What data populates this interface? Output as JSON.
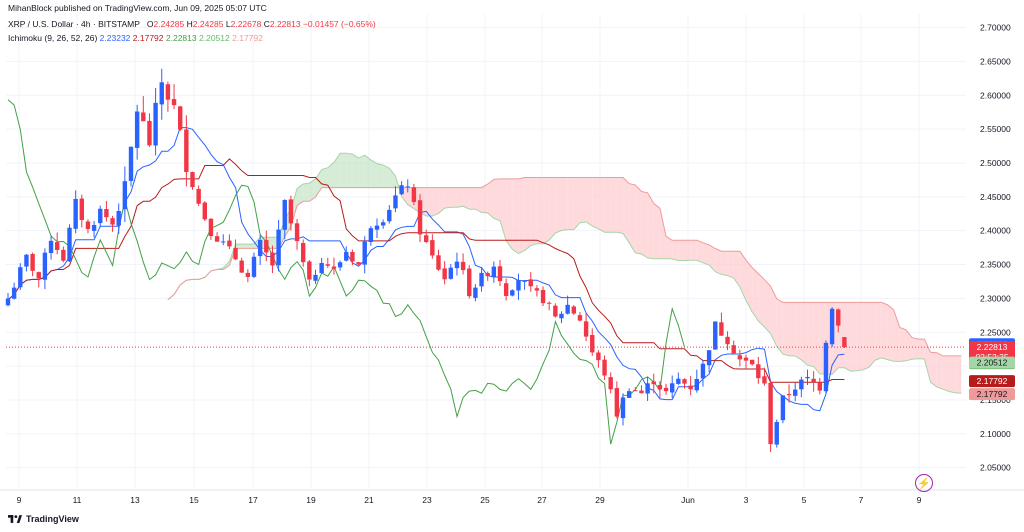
{
  "header": {
    "published": "MihanBlock published on TradingView.com, Jun 09, 2025 05:07 UTC",
    "symbol": "XRP / U.S. Dollar · 4h · BITSTAMP",
    "o_label": "O",
    "o_value": "2.24285",
    "h_label": "H",
    "h_value": "2.24285",
    "l_label": "L",
    "l_value": "2.22678",
    "c_label": "C",
    "c_value": "2.22813",
    "change": "−0.01457 (−0.65%)",
    "indicator": "Ichimoku (9, 26, 52, 26)",
    "ind_values": [
      "2.23232",
      "2.17792",
      "2.22813",
      "2.20512",
      "2.17792"
    ]
  },
  "footer": {
    "brand": "TradingView"
  },
  "icons": {
    "logo": "tradingview-logo-icon",
    "replay": "lightning-icon"
  },
  "colors": {
    "up": "#2962ff",
    "down": "#f23645",
    "tenkan": "#2962ff",
    "kijun": "#b71c1c",
    "chikou": "#43a047",
    "span_a": "#a5d6a7",
    "span_b": "#ef9a9a",
    "cloud_bull": "#c8e6c9",
    "cloud_bear": "#ffcdd2"
  },
  "chart_data": {
    "type": "candlestick",
    "interval": "4h",
    "ylim": [
      2.02,
      2.72
    ],
    "y_ticks": [
      "2.70000",
      "2.65000",
      "2.60000",
      "2.55000",
      "2.50000",
      "2.45000",
      "2.40000",
      "2.35000",
      "2.30000",
      "2.25000",
      "2.20000",
      "2.15000",
      "2.10000",
      "2.05000"
    ],
    "x_ticks": [
      "9",
      "11",
      "13",
      "15",
      "17",
      "19",
      "21",
      "23",
      "25",
      "27",
      "29",
      "Jun",
      "3",
      "5",
      "7",
      "9"
    ],
    "price_labels": [
      {
        "text": "2.23232",
        "value": 2.23232,
        "color": "#2962ff"
      },
      {
        "text": "2.22813",
        "sub": "02:52:35",
        "value": 2.22813,
        "color": "#f23645"
      },
      {
        "text": "2.22813",
        "value": 2.22813,
        "color": "#43a047",
        "shift": 1
      },
      {
        "text": "2.20512",
        "value": 2.20512,
        "color": "#a5d6a7",
        "dark_text": true
      },
      {
        "text": "2.17792",
        "value": 2.17792,
        "color": "#b71c1c"
      },
      {
        "text": "2.17792",
        "value": 2.17792,
        "color": "#ef9a9a",
        "dark_text": true,
        "shift": 1
      }
    ],
    "close_path": [
      [
        0,
        2.3
      ],
      [
        3,
        2.36
      ],
      [
        5,
        2.33
      ],
      [
        7,
        2.39
      ],
      [
        9,
        2.36
      ],
      [
        11,
        2.44
      ],
      [
        13,
        2.4
      ],
      [
        15,
        2.43
      ],
      [
        17,
        2.41
      ],
      [
        19,
        2.46
      ],
      [
        21,
        2.58
      ],
      [
        23,
        2.53
      ],
      [
        25,
        2.62
      ],
      [
        27,
        2.58
      ],
      [
        29,
        2.5
      ],
      [
        31,
        2.44
      ],
      [
        33,
        2.4
      ],
      [
        35,
        2.38
      ],
      [
        37,
        2.36
      ],
      [
        39,
        2.33
      ],
      [
        41,
        2.38
      ],
      [
        43,
        2.35
      ],
      [
        45,
        2.44
      ],
      [
        47,
        2.38
      ],
      [
        49,
        2.32
      ],
      [
        51,
        2.36
      ],
      [
        53,
        2.34
      ],
      [
        55,
        2.37
      ],
      [
        57,
        2.35
      ],
      [
        59,
        2.41
      ],
      [
        61,
        2.42
      ],
      [
        63,
        2.45
      ],
      [
        65,
        2.47
      ],
      [
        67,
        2.4
      ],
      [
        69,
        2.36
      ],
      [
        71,
        2.33
      ],
      [
        73,
        2.36
      ],
      [
        75,
        2.31
      ],
      [
        77,
        2.33
      ],
      [
        79,
        2.35
      ],
      [
        81,
        2.31
      ],
      [
        83,
        2.33
      ],
      [
        85,
        2.31
      ],
      [
        87,
        2.3
      ],
      [
        89,
        2.27
      ],
      [
        91,
        2.29
      ],
      [
        93,
        2.27
      ],
      [
        95,
        2.22
      ],
      [
        97,
        2.19
      ],
      [
        99,
        2.13
      ],
      [
        101,
        2.17
      ],
      [
        103,
        2.16
      ],
      [
        105,
        2.18
      ],
      [
        107,
        2.16
      ],
      [
        109,
        2.18
      ],
      [
        111,
        2.17
      ],
      [
        113,
        2.2
      ],
      [
        115,
        2.26
      ],
      [
        117,
        2.24
      ],
      [
        119,
        2.21
      ],
      [
        121,
        2.2
      ],
      [
        123,
        2.17
      ],
      [
        124,
        2.09
      ],
      [
        126,
        2.15
      ],
      [
        128,
        2.17
      ],
      [
        130,
        2.18
      ],
      [
        132,
        2.17
      ],
      [
        133,
        2.24
      ],
      [
        134,
        2.29
      ],
      [
        135,
        2.26
      ],
      [
        136,
        2.22813
      ]
    ]
  }
}
